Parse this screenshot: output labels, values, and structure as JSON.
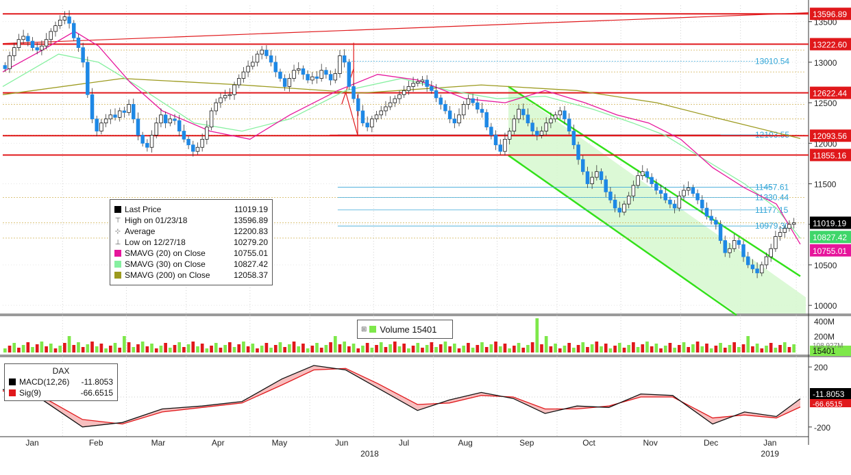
{
  "chart_data": [
    {
      "type": "candlestick",
      "name": "DAX",
      "ylim": [
        9900,
        13700
      ],
      "y_ticks": [
        10000,
        10500,
        11000,
        11500,
        12000,
        12500,
        13000,
        13500
      ],
      "y_tick_labels": [
        "10000",
        "10500",
        "11000",
        "11500",
        "12000",
        "12500",
        "13000",
        "13500"
      ],
      "x_month_labels": [
        "Jan",
        "Feb",
        "Mar",
        "Apr",
        "May",
        "Jun",
        "Jul",
        "Aug",
        "Sep",
        "Oct",
        "Nov",
        "Dec",
        "Jan"
      ],
      "x_year_labels": [
        "2018",
        "2019"
      ],
      "legend": {
        "position": "middle-left",
        "items": [
          {
            "glyph": "square",
            "color": "#000000",
            "label": "Last Price",
            "value": "11019.19"
          },
          {
            "glyph": "high",
            "color": "#555555",
            "label": "High on 01/23/18",
            "value": "13596.89"
          },
          {
            "glyph": "avg",
            "color": "#555555",
            "label": "Average",
            "value": "12200.83"
          },
          {
            "glyph": "low",
            "color": "#555555",
            "label": "Low on 12/27/18",
            "value": "10279.20"
          },
          {
            "glyph": "square",
            "color": "#e6159b",
            "label": "SMAVG (20)  on Close",
            "value": "10755.01"
          },
          {
            "glyph": "square",
            "color": "#86f0a0",
            "label": "SMAVG (30)  on Close",
            "value": "10827.42"
          },
          {
            "glyph": "square",
            "color": "#9c9a1e",
            "label": "SMAVG (200)  on Close",
            "value": "12058.37"
          }
        ]
      },
      "axis_tags": [
        {
          "value": 13596.89,
          "label": "13596.89",
          "color": "#e0181b"
        },
        {
          "value": 13222.6,
          "label": "13222.60",
          "color": "#e0181b"
        },
        {
          "value": 12622.44,
          "label": "12622.44",
          "color": "#e0181b"
        },
        {
          "value": 12093.56,
          "label": "12093.56",
          "color": "#e0181b"
        },
        {
          "value": 11855.16,
          "label": "11855.16",
          "color": "#e0181b"
        },
        {
          "value": 11019.19,
          "label": "11019.19",
          "color": "#000000"
        },
        {
          "value": 10827.42,
          "label": "10827.42",
          "color": "#3fd66a"
        },
        {
          "value": 10755.01,
          "label": "10755.01",
          "color": "#e6159b"
        }
      ],
      "horizontal_levels": [
        {
          "value": 13596.89,
          "color": "#e0181b"
        },
        {
          "value": 13222.6,
          "color": "#e0181b"
        },
        {
          "value": 12622.44,
          "color": "#e0181b"
        },
        {
          "value": 12093.56,
          "color": "#e0181b"
        },
        {
          "value": 11855.16,
          "color": "#e0181b"
        }
      ],
      "fib_labels": [
        {
          "value": 13010.54,
          "label": "13010.54"
        },
        {
          "value": 12103.55,
          "label": "12103.55"
        },
        {
          "value": 11457.61,
          "label": "11457.61"
        },
        {
          "value": 11330.44,
          "label": "11330.44"
        },
        {
          "value": 11177.15,
          "label": "11177.15"
        },
        {
          "value": 10979.3,
          "label": "10979.30"
        }
      ],
      "dotted_levels": [
        13150,
        12880,
        12620,
        12480,
        12300,
        12100,
        11330,
        11020,
        10830
      ],
      "closes": [
        12920,
        13080,
        13180,
        13280,
        13320,
        13260,
        13180,
        13150,
        13200,
        13280,
        13380,
        13450,
        13520,
        13560,
        13480,
        13300,
        13180,
        13000,
        12600,
        12300,
        12150,
        12250,
        12300,
        12350,
        12320,
        12400,
        12380,
        12480,
        12300,
        12100,
        12000,
        11950,
        12100,
        12250,
        12350,
        12250,
        12300,
        12280,
        12150,
        12050,
        11980,
        11900,
        11950,
        12050,
        12200,
        12400,
        12500,
        12560,
        12590,
        12600,
        12720,
        12800,
        12880,
        12950,
        13000,
        13100,
        13150,
        13080,
        13000,
        12880,
        12800,
        12700,
        12800,
        12900,
        12920,
        12850,
        12780,
        12820,
        12800,
        12900,
        12850,
        12780,
        12860,
        13080,
        13000,
        12700,
        12550,
        12400,
        12250,
        12200,
        12300,
        12350,
        12400,
        12450,
        12500,
        12550,
        12600,
        12650,
        12700,
        12740,
        12760,
        12780,
        12700,
        12650,
        12560,
        12480,
        12400,
        12300,
        12250,
        12350,
        12480,
        12550,
        12500,
        12420,
        12380,
        12200,
        12100,
        11980,
        11900,
        12050,
        12150,
        12300,
        12420,
        12350,
        12250,
        12150,
        12100,
        12150,
        12250,
        12300,
        12350,
        12400,
        12300,
        12150,
        11980,
        11800,
        11650,
        11500,
        11580,
        11650,
        11550,
        11400,
        11300,
        11200,
        11150,
        11250,
        11350,
        11480,
        11600,
        11650,
        11580,
        11500,
        11420,
        11380,
        11300,
        11250,
        11200,
        11350,
        11420,
        11450,
        11380,
        11300,
        11200,
        11100,
        11050,
        11000,
        10800,
        10650,
        10700,
        10800,
        10750,
        10600,
        10500,
        10450,
        10400,
        10500,
        10600,
        10700,
        10850,
        10900,
        10950,
        11000,
        11019.19
      ],
      "smavg20": [
        [
          0.0,
          12880
        ],
        [
          0.05,
          13150
        ],
        [
          0.09,
          13380
        ],
        [
          0.12,
          13200
        ],
        [
          0.16,
          12750
        ],
        [
          0.2,
          12400
        ],
        [
          0.26,
          12150
        ],
        [
          0.31,
          12050
        ],
        [
          0.36,
          12350
        ],
        [
          0.42,
          12650
        ],
        [
          0.47,
          12850
        ],
        [
          0.52,
          12780
        ],
        [
          0.58,
          12550
        ],
        [
          0.63,
          12500
        ],
        [
          0.68,
          12650
        ],
        [
          0.73,
          12500
        ],
        [
          0.77,
          12350
        ],
        [
          0.81,
          12250
        ],
        [
          0.85,
          12050
        ],
        [
          0.89,
          11700
        ],
        [
          0.93,
          11450
        ],
        [
          0.97,
          11250
        ],
        [
          1.0,
          10755
        ]
      ],
      "smavg30": [
        [
          0.0,
          12700
        ],
        [
          0.07,
          13100
        ],
        [
          0.12,
          13000
        ],
        [
          0.17,
          12700
        ],
        [
          0.24,
          12250
        ],
        [
          0.3,
          12150
        ],
        [
          0.36,
          12300
        ],
        [
          0.43,
          12650
        ],
        [
          0.5,
          12800
        ],
        [
          0.56,
          12650
        ],
        [
          0.62,
          12550
        ],
        [
          0.68,
          12580
        ],
        [
          0.74,
          12420
        ],
        [
          0.79,
          12250
        ],
        [
          0.83,
          12100
        ],
        [
          0.88,
          11800
        ],
        [
          0.93,
          11500
        ],
        [
          0.97,
          11200
        ],
        [
          1.0,
          10827
        ]
      ],
      "smavg200": [
        [
          0.0,
          12600
        ],
        [
          0.15,
          12800
        ],
        [
          0.3,
          12720
        ],
        [
          0.45,
          12620
        ],
        [
          0.6,
          12720
        ],
        [
          0.72,
          12650
        ],
        [
          0.82,
          12500
        ],
        [
          0.9,
          12300
        ],
        [
          1.0,
          12058
        ]
      ]
    },
    {
      "type": "bar",
      "name": "Volume",
      "legend_label": "Volume  15401",
      "y_tick_labels": [
        "400M",
        "200M"
      ],
      "axis_tags": [
        {
          "label": "15401",
          "color": "#7ee84a"
        },
        {
          "label": "108.927M",
          "color": "#555555"
        }
      ],
      "note": "volume bars shown only graphically"
    },
    {
      "type": "line",
      "name": "MACD",
      "legend_title": "DAX",
      "legend": [
        {
          "color": "#000000",
          "label": "MACD(12,26)",
          "value": "-11.8053"
        },
        {
          "color": "#e0181b",
          "label": "Sig(9)",
          "value": "-66.6515"
        }
      ],
      "y_ticks": [
        200,
        0,
        -200
      ],
      "y_tick_labels": [
        "200",
        "-200"
      ],
      "axis_tags": [
        {
          "label": "-11.8053",
          "color": "#000000"
        },
        {
          "label": "-66.6515",
          "color": "#e0181b"
        }
      ],
      "macd": [
        [
          0.0,
          50
        ],
        [
          0.05,
          -20
        ],
        [
          0.1,
          -200
        ],
        [
          0.15,
          -170
        ],
        [
          0.2,
          -80
        ],
        [
          0.25,
          -60
        ],
        [
          0.3,
          -30
        ],
        [
          0.35,
          120
        ],
        [
          0.39,
          210
        ],
        [
          0.43,
          180
        ],
        [
          0.47,
          60
        ],
        [
          0.52,
          -90
        ],
        [
          0.56,
          -20
        ],
        [
          0.6,
          30
        ],
        [
          0.64,
          -10
        ],
        [
          0.68,
          -110
        ],
        [
          0.72,
          -60
        ],
        [
          0.76,
          -70
        ],
        [
          0.8,
          20
        ],
        [
          0.84,
          10
        ],
        [
          0.89,
          -180
        ],
        [
          0.93,
          -100
        ],
        [
          0.97,
          -130
        ],
        [
          1.0,
          -11.8
        ]
      ],
      "sig": [
        [
          0.0,
          40
        ],
        [
          0.05,
          0
        ],
        [
          0.1,
          -150
        ],
        [
          0.15,
          -180
        ],
        [
          0.2,
          -100
        ],
        [
          0.25,
          -70
        ],
        [
          0.3,
          -40
        ],
        [
          0.35,
          80
        ],
        [
          0.39,
          180
        ],
        [
          0.43,
          190
        ],
        [
          0.47,
          90
        ],
        [
          0.52,
          -50
        ],
        [
          0.56,
          -40
        ],
        [
          0.6,
          10
        ],
        [
          0.64,
          0
        ],
        [
          0.68,
          -80
        ],
        [
          0.72,
          -80
        ],
        [
          0.76,
          -60
        ],
        [
          0.8,
          0
        ],
        [
          0.84,
          0
        ],
        [
          0.89,
          -140
        ],
        [
          0.93,
          -120
        ],
        [
          0.97,
          -140
        ],
        [
          1.0,
          -66.7
        ]
      ]
    }
  ]
}
